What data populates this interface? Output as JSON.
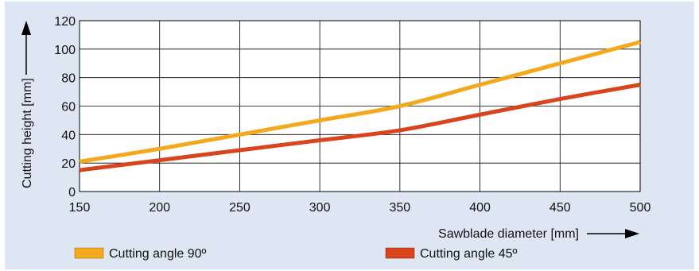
{
  "chart_data": {
    "type": "line",
    "xlabel": "Sawblade diameter [mm]",
    "ylabel": "Cutting height [mm]",
    "xlim": [
      150,
      500
    ],
    "ylim": [
      0,
      120
    ],
    "x_ticks": [
      "150",
      "200",
      "250",
      "300",
      "350",
      "400",
      "450",
      "500"
    ],
    "y_ticks": [
      "0",
      "20",
      "40",
      "60",
      "80",
      "100",
      "120"
    ],
    "grid": true,
    "legend_position": "bottom",
    "series": [
      {
        "name": "Cutting angle 90º",
        "color": "#f4a81c",
        "x": [
          150,
          200,
          250,
          300,
          350,
          400,
          450,
          500
        ],
        "y": [
          21,
          30,
          40,
          50,
          60,
          75,
          90,
          105
        ]
      },
      {
        "name": "Cutting angle 45º",
        "color": "#d9441c",
        "x": [
          150,
          200,
          250,
          300,
          350,
          400,
          450,
          500
        ],
        "y": [
          15,
          22,
          29,
          36,
          43,
          54,
          65,
          75
        ]
      }
    ]
  }
}
